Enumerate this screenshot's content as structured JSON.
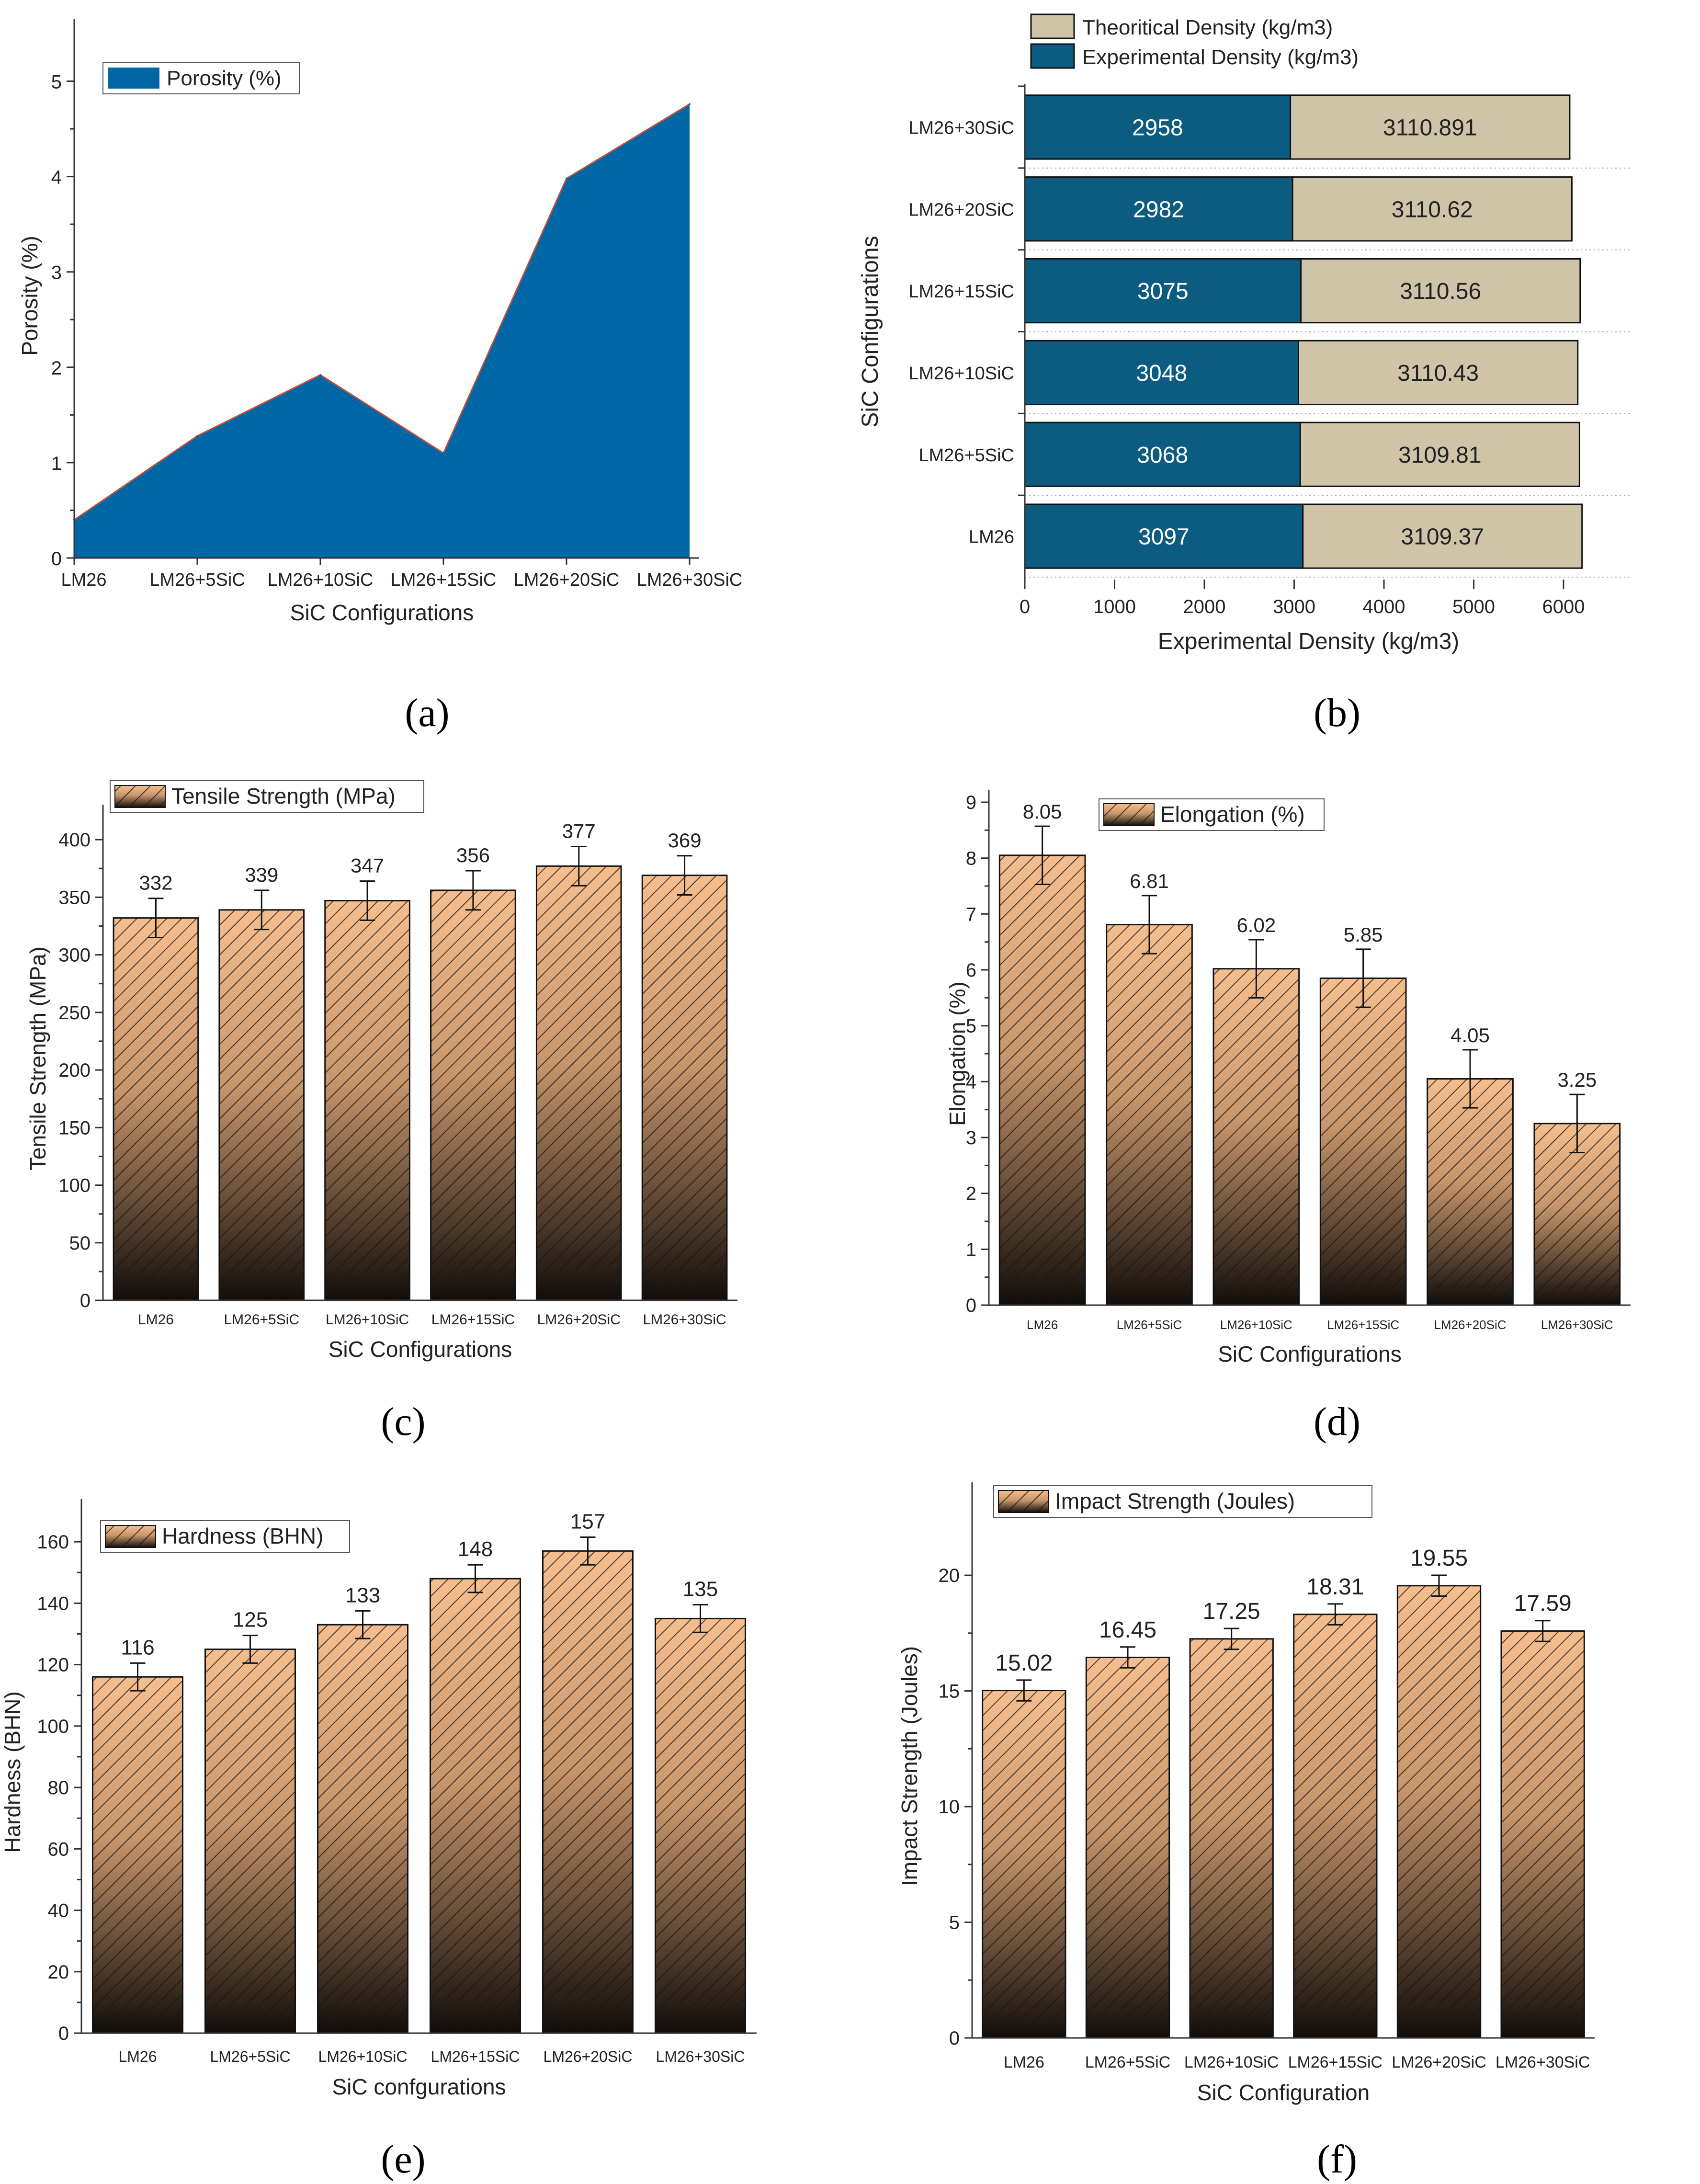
{
  "colors": {
    "porosity_fill": "#0067A7",
    "experimental": "#0C5C82",
    "theoretical": "#CFC3A8",
    "bar_top": "#F5BE8E",
    "bar_bottom": "#110D0A",
    "axis": "#333333"
  },
  "chart_data": [
    {
      "id": "a",
      "type": "area",
      "panel_label": "(a)",
      "title": "",
      "xlabel": "SiC Configurations",
      "ylabel": "Porosity (%)",
      "legend": [
        "Porosity (%)"
      ],
      "categories": [
        "LM26",
        "LM26+5SiC",
        "LM26+10SiC",
        "LM26+15SiC",
        "LM26+20SiC",
        "LM26+30SiC"
      ],
      "values": [
        0.4,
        1.28,
        1.92,
        1.1,
        3.98,
        4.76
      ],
      "yticks": [
        "0",
        "1",
        "2",
        "3",
        "4",
        "5"
      ],
      "ylim": [
        0,
        5.5
      ]
    },
    {
      "id": "b",
      "type": "bar",
      "orientation": "horizontal",
      "stacked": true,
      "panel_label": "(b)",
      "xlabel": "Experimental Density (kg/m3)",
      "ylabel": "SiC Configurations",
      "legend": [
        "Theoritical Density (kg/m3)",
        "Experimental Density (kg/m3)"
      ],
      "categories": [
        "LM26",
        "LM26+5SiC",
        "LM26+10SiC",
        "LM26+15SiC",
        "LM26+20SiC",
        "LM26+30SiC"
      ],
      "series": [
        {
          "name": "Experimental Density (kg/m3)",
          "values": [
            3097,
            3068,
            3048,
            3075,
            2982,
            2958
          ]
        },
        {
          "name": "Theoritical Density (kg/m3)",
          "values": [
            3109.37,
            3109.81,
            3110.43,
            3110.56,
            3110.62,
            3110.891
          ]
        }
      ],
      "value_labels": {
        "experimental": [
          "3097",
          "3068",
          "3048",
          "3075",
          "2982",
          "2958"
        ],
        "theoretical": [
          "3109.37",
          "3109.81",
          "3110.43",
          "3110.56",
          "3110.62",
          "3110.891"
        ]
      },
      "xticks": [
        "0",
        "1000",
        "2000",
        "3000",
        "4000",
        "5000",
        "6000"
      ],
      "xlim": [
        0,
        6800
      ]
    },
    {
      "id": "c",
      "type": "bar",
      "panel_label": "(c)",
      "xlabel": "SiC Configurations",
      "ylabel": "Tensile Strength (MPa)",
      "legend": [
        "Tensile Strength (MPa)"
      ],
      "categories": [
        "LM26",
        "LM26+5SiC",
        "LM26+10SiC",
        "LM26+15SiC",
        "LM26+20SiC",
        "LM26+30SiC"
      ],
      "values": [
        332,
        339,
        347,
        356,
        377,
        369
      ],
      "value_labels": [
        "332",
        "339",
        "347",
        "356",
        "377",
        "369"
      ],
      "errors": [
        17,
        17,
        17,
        17,
        17,
        17
      ],
      "yticks": [
        "0",
        "50",
        "100",
        "150",
        "200",
        "250",
        "300",
        "350",
        "400"
      ],
      "ylim": [
        0,
        420
      ]
    },
    {
      "id": "d",
      "type": "bar",
      "panel_label": "(d)",
      "xlabel": "SiC Configurations",
      "ylabel": "Elongation (%)",
      "legend": [
        "Elongation (%)"
      ],
      "categories": [
        "LM26",
        "LM26+5SiC",
        "LM26+10SiC",
        "LM26+15SiC",
        "LM26+20SiC",
        "LM26+30SiC"
      ],
      "values": [
        8.05,
        6.81,
        6.02,
        5.85,
        4.05,
        3.25
      ],
      "value_labels": [
        "8.05",
        "6.81",
        "6.02",
        "5.85",
        "4.05",
        "3.25"
      ],
      "errors": [
        0.52,
        0.52,
        0.52,
        0.52,
        0.52,
        0.52
      ],
      "yticks": [
        "0",
        "1",
        "2",
        "3",
        "4",
        "5",
        "6",
        "7",
        "8",
        "9"
      ],
      "ylim": [
        0,
        9
      ]
    },
    {
      "id": "e",
      "type": "bar",
      "panel_label": "(e)",
      "xlabel": "SiC confgurations",
      "ylabel": "Hardness (BHN)",
      "legend": [
        "Hardness (BHN)"
      ],
      "categories": [
        "LM26",
        "LM26+5SiC",
        "LM26+10SiC",
        "LM26+15SiC",
        "LM26+20SiC",
        "LM26+30SiC"
      ],
      "values": [
        116,
        125,
        133,
        148,
        157,
        135
      ],
      "value_labels": [
        "116",
        "125",
        "133",
        "148",
        "157",
        "135"
      ],
      "errors": [
        4.5,
        4.5,
        4.5,
        4.5,
        4.5,
        4.5
      ],
      "yticks": [
        "0",
        "20",
        "40",
        "60",
        "80",
        "100",
        "120",
        "140",
        "160"
      ],
      "ylim": [
        0,
        170
      ]
    },
    {
      "id": "f",
      "type": "bar",
      "panel_label": "(f)",
      "xlabel": "SiC Configuration",
      "ylabel": "Impact Strength (Joules)",
      "legend": [
        "Impact Strength (Joules)"
      ],
      "categories": [
        "LM26",
        "LM26+5SiC",
        "LM26+10SiC",
        "LM26+15SiC",
        "LM26+20SiC",
        "LM26+30SiC"
      ],
      "values": [
        15.02,
        16.45,
        17.25,
        18.31,
        19.55,
        17.59
      ],
      "value_labels": [
        "15.02",
        "16.45",
        "17.25",
        "18.31",
        "19.55",
        "17.59"
      ],
      "errors": [
        0.45,
        0.45,
        0.45,
        0.45,
        0.45,
        0.45
      ],
      "yticks": [
        "0",
        "5",
        "10",
        "15",
        "20"
      ],
      "ylim": [
        0,
        23.5
      ]
    }
  ]
}
